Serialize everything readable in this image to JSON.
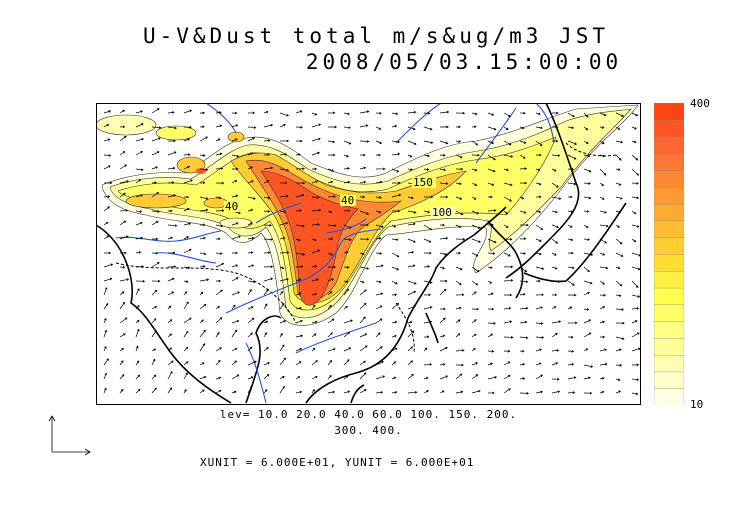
{
  "title": {
    "line1": "U-V&Dust total m/s&ug/m3 JST",
    "line2": "2008/05/03.15:00:00"
  },
  "colorbar": {
    "max_label": "400",
    "min_label": "10",
    "colors": [
      "#ffffe6",
      "#ffffcc",
      "#ffffb3",
      "#ffff99",
      "#ffff80",
      "#ffff66",
      "#ffff4d",
      "#ffee44",
      "#ffdd33",
      "#ffcc33",
      "#ffbb33",
      "#ffaa33",
      "#ff9933",
      "#ff8833",
      "#ff7733",
      "#ff6633",
      "#ff5522",
      "#ff4411"
    ]
  },
  "contours": {
    "lev_line1": "lev= 10.0 20.0 40.0 60.0 100. 150. 200.",
    "lev_line2": "300. 400.",
    "map_labels": [
      "40",
      "40",
      "150",
      "100"
    ]
  },
  "vector_units": {
    "text": "XUNIT = 6.000E+01, YUNIT = 6.000E+01"
  },
  "style": {
    "river_color": "#2255dd",
    "coast_color": "#000000",
    "dust_high": "#ff4411",
    "dust_mid": "#ffcc33",
    "dust_low": "#ffffb3"
  }
}
